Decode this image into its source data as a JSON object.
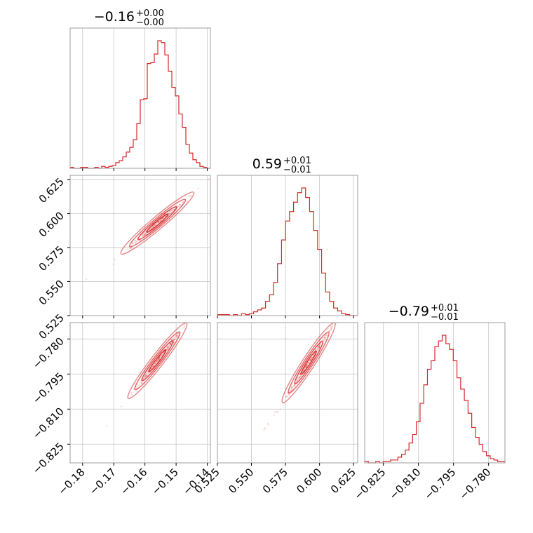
{
  "chart_data": {
    "type": "corner",
    "color": "#d62728",
    "variables": [
      {
        "range": [
          -0.184,
          -0.139
        ],
        "ticks": [
          -0.18,
          -0.17,
          -0.16,
          -0.15,
          -0.14
        ],
        "tick_labels": [
          "−0.18",
          "−0.17",
          "−0.16",
          "−0.15",
          "−0.14"
        ]
      },
      {
        "range": [
          0.525,
          0.628
        ],
        "ticks": [
          0.525,
          0.55,
          0.575,
          0.6,
          0.625
        ],
        "tick_labels": [
          "0.525",
          "0.550",
          "0.575",
          "0.600",
          "0.625"
        ]
      },
      {
        "range": [
          -0.833,
          -0.773
        ],
        "ticks": [
          -0.825,
          -0.81,
          -0.795,
          -0.78
        ],
        "tick_labels": [
          "−0.825",
          "−0.810",
          "−0.795",
          "−0.780"
        ]
      }
    ],
    "titles": [
      {
        "value": "−0.16",
        "plus": "+0.00",
        "minus": "−0.00"
      },
      {
        "value": "0.59",
        "plus": "+0.01",
        "minus": "−0.01"
      },
      {
        "value": "−0.79",
        "plus": "+0.01",
        "minus": "−0.01"
      }
    ],
    "histograms": [
      {
        "variable": 0,
        "counts": [
          1,
          0,
          0,
          1,
          1,
          0,
          0,
          1,
          0,
          2,
          1,
          2,
          3,
          6,
          8,
          12,
          17,
          22,
          30,
          47,
          72,
          73,
          110,
          111,
          120,
          134,
          132,
          119,
          102,
          85,
          76,
          57,
          43,
          25,
          16,
          9,
          6,
          2,
          1,
          0
        ]
      },
      {
        "variable": 1,
        "counts": [
          1,
          1,
          1,
          0,
          1,
          0,
          2,
          1,
          2,
          4,
          6,
          8,
          15,
          22,
          35,
          55,
          80,
          100,
          110,
          120,
          130,
          135,
          125,
          110,
          90,
          70,
          45,
          25,
          15,
          8,
          5,
          2,
          1,
          0,
          0
        ]
      },
      {
        "variable": 2,
        "counts": [
          1,
          0,
          0,
          1,
          0,
          1,
          1,
          2,
          2,
          4,
          6,
          9,
          14,
          20,
          29,
          42,
          55,
          66,
          72,
          82,
          86,
          90,
          84,
          80,
          72,
          60,
          52,
          44,
          35,
          25,
          18,
          13,
          8,
          5,
          3,
          2,
          1,
          1
        ]
      }
    ],
    "scatter_pairs": [
      {
        "x_var": 0,
        "y_var": 1,
        "slope": 1.93,
        "intercept": 0.894,
        "center": [
          -0.156,
          0.5926
        ]
      },
      {
        "x_var": 0,
        "y_var": 2,
        "slope": 1.72,
        "intercept": -0.521,
        "center": [
          -0.156,
          -0.7893
        ]
      },
      {
        "x_var": 1,
        "y_var": 2,
        "slope": 0.89,
        "intercept": -1.317,
        "center": [
          0.592,
          -0.7902
        ]
      }
    ]
  }
}
